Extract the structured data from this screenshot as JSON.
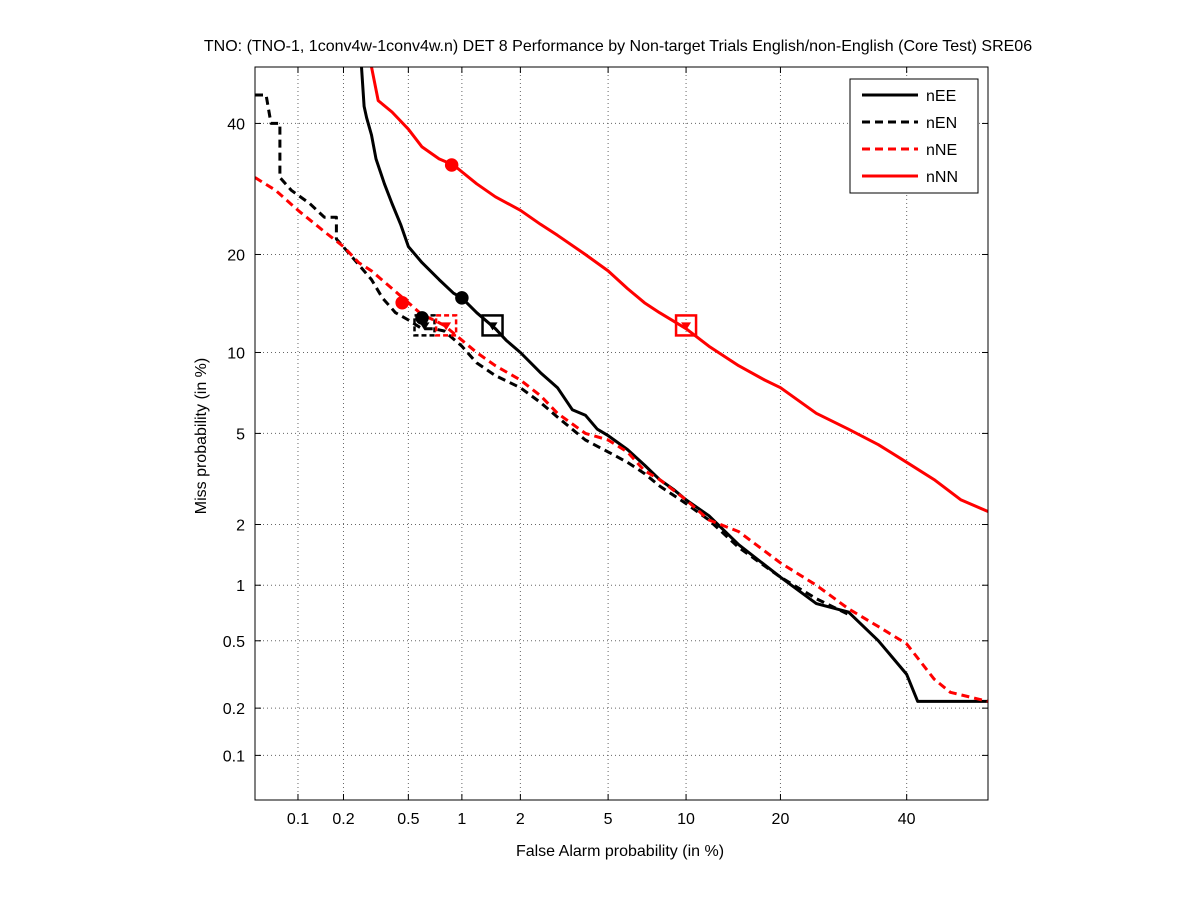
{
  "chart_data": {
    "type": "line",
    "title": "TNO: (TNO-1, 1conv4w-1conv4w.n) DET 8 Performance by Non-target Trials English/non-English (Core Test) SRE06",
    "xlabel": "False Alarm probability (in %)",
    "ylabel": "Miss probability (in %)",
    "x_scale": "normal-deviate (probit)",
    "y_scale": "normal-deviate (probit)",
    "xlim": [
      0.05,
      55
    ],
    "ylim": [
      0.05,
      50
    ],
    "xticks": [
      {
        "value": 0.1,
        "label": "0.1"
      },
      {
        "value": 0.2,
        "label": "0.2"
      },
      {
        "value": 0.5,
        "label": "0.5"
      },
      {
        "value": 1,
        "label": "1"
      },
      {
        "value": 2,
        "label": "2"
      },
      {
        "value": 5,
        "label": "5"
      },
      {
        "value": 10,
        "label": "10"
      },
      {
        "value": 20,
        "label": "20"
      },
      {
        "value": 40,
        "label": "40"
      }
    ],
    "yticks": [
      {
        "value": 0.1,
        "label": "0.1"
      },
      {
        "value": 0.2,
        "label": "0.2"
      },
      {
        "value": 0.5,
        "label": "0.5"
      },
      {
        "value": 1,
        "label": "1"
      },
      {
        "value": 2,
        "label": "2"
      },
      {
        "value": 5,
        "label": "5"
      },
      {
        "value": 10,
        "label": "10"
      },
      {
        "value": 20,
        "label": "20"
      },
      {
        "value": 40,
        "label": "40"
      }
    ],
    "grid": true,
    "legend_position": "top-right",
    "series": [
      {
        "name": "nEE",
        "color": "#000000",
        "dash": "solid",
        "points": [
          [
            0.26,
            50
          ],
          [
            0.27,
            43
          ],
          [
            0.28,
            41
          ],
          [
            0.3,
            38
          ],
          [
            0.32,
            34
          ],
          [
            0.36,
            30
          ],
          [
            0.4,
            27
          ],
          [
            0.45,
            24
          ],
          [
            0.5,
            21
          ],
          [
            0.6,
            19
          ],
          [
            0.75,
            17
          ],
          [
            0.9,
            15.5
          ],
          [
            1.0,
            15
          ],
          [
            1.2,
            13.5
          ],
          [
            1.5,
            12
          ],
          [
            1.7,
            11
          ],
          [
            2.0,
            10
          ],
          [
            2.5,
            8.5
          ],
          [
            3.0,
            7.5
          ],
          [
            3.5,
            6.2
          ],
          [
            4.0,
            5.9
          ],
          [
            4.5,
            5.2
          ],
          [
            5.0,
            4.9
          ],
          [
            6.0,
            4.3
          ],
          [
            7.0,
            3.7
          ],
          [
            8.0,
            3.2
          ],
          [
            9.0,
            2.9
          ],
          [
            10,
            2.6
          ],
          [
            12,
            2.2
          ],
          [
            15,
            1.6
          ],
          [
            20,
            1.1
          ],
          [
            25,
            0.8
          ],
          [
            30,
            0.72
          ],
          [
            35,
            0.5
          ],
          [
            40,
            0.32
          ],
          [
            42,
            0.22
          ],
          [
            55,
            0.22
          ]
        ],
        "min_dcf": [
          1.0,
          15
        ],
        "act_dcf": [
          1.45,
          12.3
        ]
      },
      {
        "name": "nEN",
        "color": "#000000",
        "dash": "dashed",
        "points": [
          [
            0.05,
            45
          ],
          [
            0.06,
            45
          ],
          [
            0.065,
            40
          ],
          [
            0.075,
            40
          ],
          [
            0.075,
            31
          ],
          [
            0.09,
            29
          ],
          [
            0.12,
            27
          ],
          [
            0.15,
            25
          ],
          [
            0.18,
            25
          ],
          [
            0.18,
            22
          ],
          [
            0.22,
            20
          ],
          [
            0.3,
            17
          ],
          [
            0.35,
            15
          ],
          [
            0.42,
            13.5
          ],
          [
            0.5,
            12.8
          ],
          [
            0.6,
            12
          ],
          [
            0.7,
            12
          ],
          [
            0.8,
            11.8
          ],
          [
            1.0,
            10.5
          ],
          [
            1.2,
            9.2
          ],
          [
            1.5,
            8.3
          ],
          [
            2.0,
            7.5
          ],
          [
            2.5,
            6.6
          ],
          [
            3.0,
            5.8
          ],
          [
            4.0,
            4.7
          ],
          [
            5.0,
            4.2
          ],
          [
            6.0,
            3.8
          ],
          [
            7.0,
            3.4
          ],
          [
            8.0,
            3.0
          ],
          [
            10,
            2.5
          ],
          [
            12,
            2.1
          ],
          [
            15,
            1.55
          ],
          [
            20,
            1.1
          ],
          [
            25,
            0.85
          ],
          [
            30,
            0.7
          ]
        ],
        "min_dcf": [
          0.6,
          13
        ],
        "act_dcf": [
          0.62,
          12.3
        ]
      },
      {
        "name": "nNE",
        "color": "#ff0000",
        "dash": "dashed",
        "points": [
          [
            0.05,
            31
          ],
          [
            0.07,
            29
          ],
          [
            0.1,
            26
          ],
          [
            0.15,
            23
          ],
          [
            0.2,
            21
          ],
          [
            0.25,
            19
          ],
          [
            0.3,
            18
          ],
          [
            0.4,
            16
          ],
          [
            0.5,
            14.5
          ],
          [
            0.6,
            13.3
          ],
          [
            0.7,
            12.8
          ],
          [
            0.8,
            12.3
          ],
          [
            1.0,
            11
          ],
          [
            1.2,
            10
          ],
          [
            1.5,
            9
          ],
          [
            2.0,
            8
          ],
          [
            2.5,
            7
          ],
          [
            3.0,
            6
          ],
          [
            4.0,
            5
          ],
          [
            5.0,
            4.7
          ],
          [
            6.0,
            4.2
          ],
          [
            7.0,
            3.5
          ],
          [
            8.0,
            3.2
          ],
          [
            10,
            2.6
          ],
          [
            12,
            2.1
          ],
          [
            15,
            1.85
          ],
          [
            20,
            1.3
          ],
          [
            25,
            1.0
          ],
          [
            30,
            0.75
          ],
          [
            35,
            0.6
          ],
          [
            40,
            0.48
          ],
          [
            45,
            0.3
          ],
          [
            48,
            0.25
          ],
          [
            55,
            0.22
          ]
        ],
        "min_dcf": [
          0.46,
          14.5
        ],
        "act_dcf": [
          0.82,
          12.3
        ]
      },
      {
        "name": "nNN",
        "color": "#ff0000",
        "dash": "solid",
        "points": [
          [
            0.3,
            50
          ],
          [
            0.33,
            44
          ],
          [
            0.4,
            42
          ],
          [
            0.5,
            39
          ],
          [
            0.6,
            36
          ],
          [
            0.75,
            34
          ],
          [
            0.9,
            33
          ],
          [
            1.2,
            30
          ],
          [
            1.5,
            28
          ],
          [
            2.0,
            26
          ],
          [
            2.5,
            24
          ],
          [
            3.0,
            22.5
          ],
          [
            4.0,
            20
          ],
          [
            5.0,
            18
          ],
          [
            6.0,
            16
          ],
          [
            7.0,
            14.5
          ],
          [
            8.0,
            13.5
          ],
          [
            10,
            12
          ],
          [
            12,
            10.5
          ],
          [
            15,
            9
          ],
          [
            18,
            8
          ],
          [
            20,
            7.5
          ],
          [
            25,
            6
          ],
          [
            30,
            5.2
          ],
          [
            35,
            4.5
          ],
          [
            40,
            3.8
          ],
          [
            45,
            3.2
          ],
          [
            50,
            2.6
          ],
          [
            55,
            2.3
          ]
        ],
        "min_dcf": [
          0.88,
          33
        ],
        "act_dcf": [
          10,
          12.3
        ]
      }
    ]
  }
}
